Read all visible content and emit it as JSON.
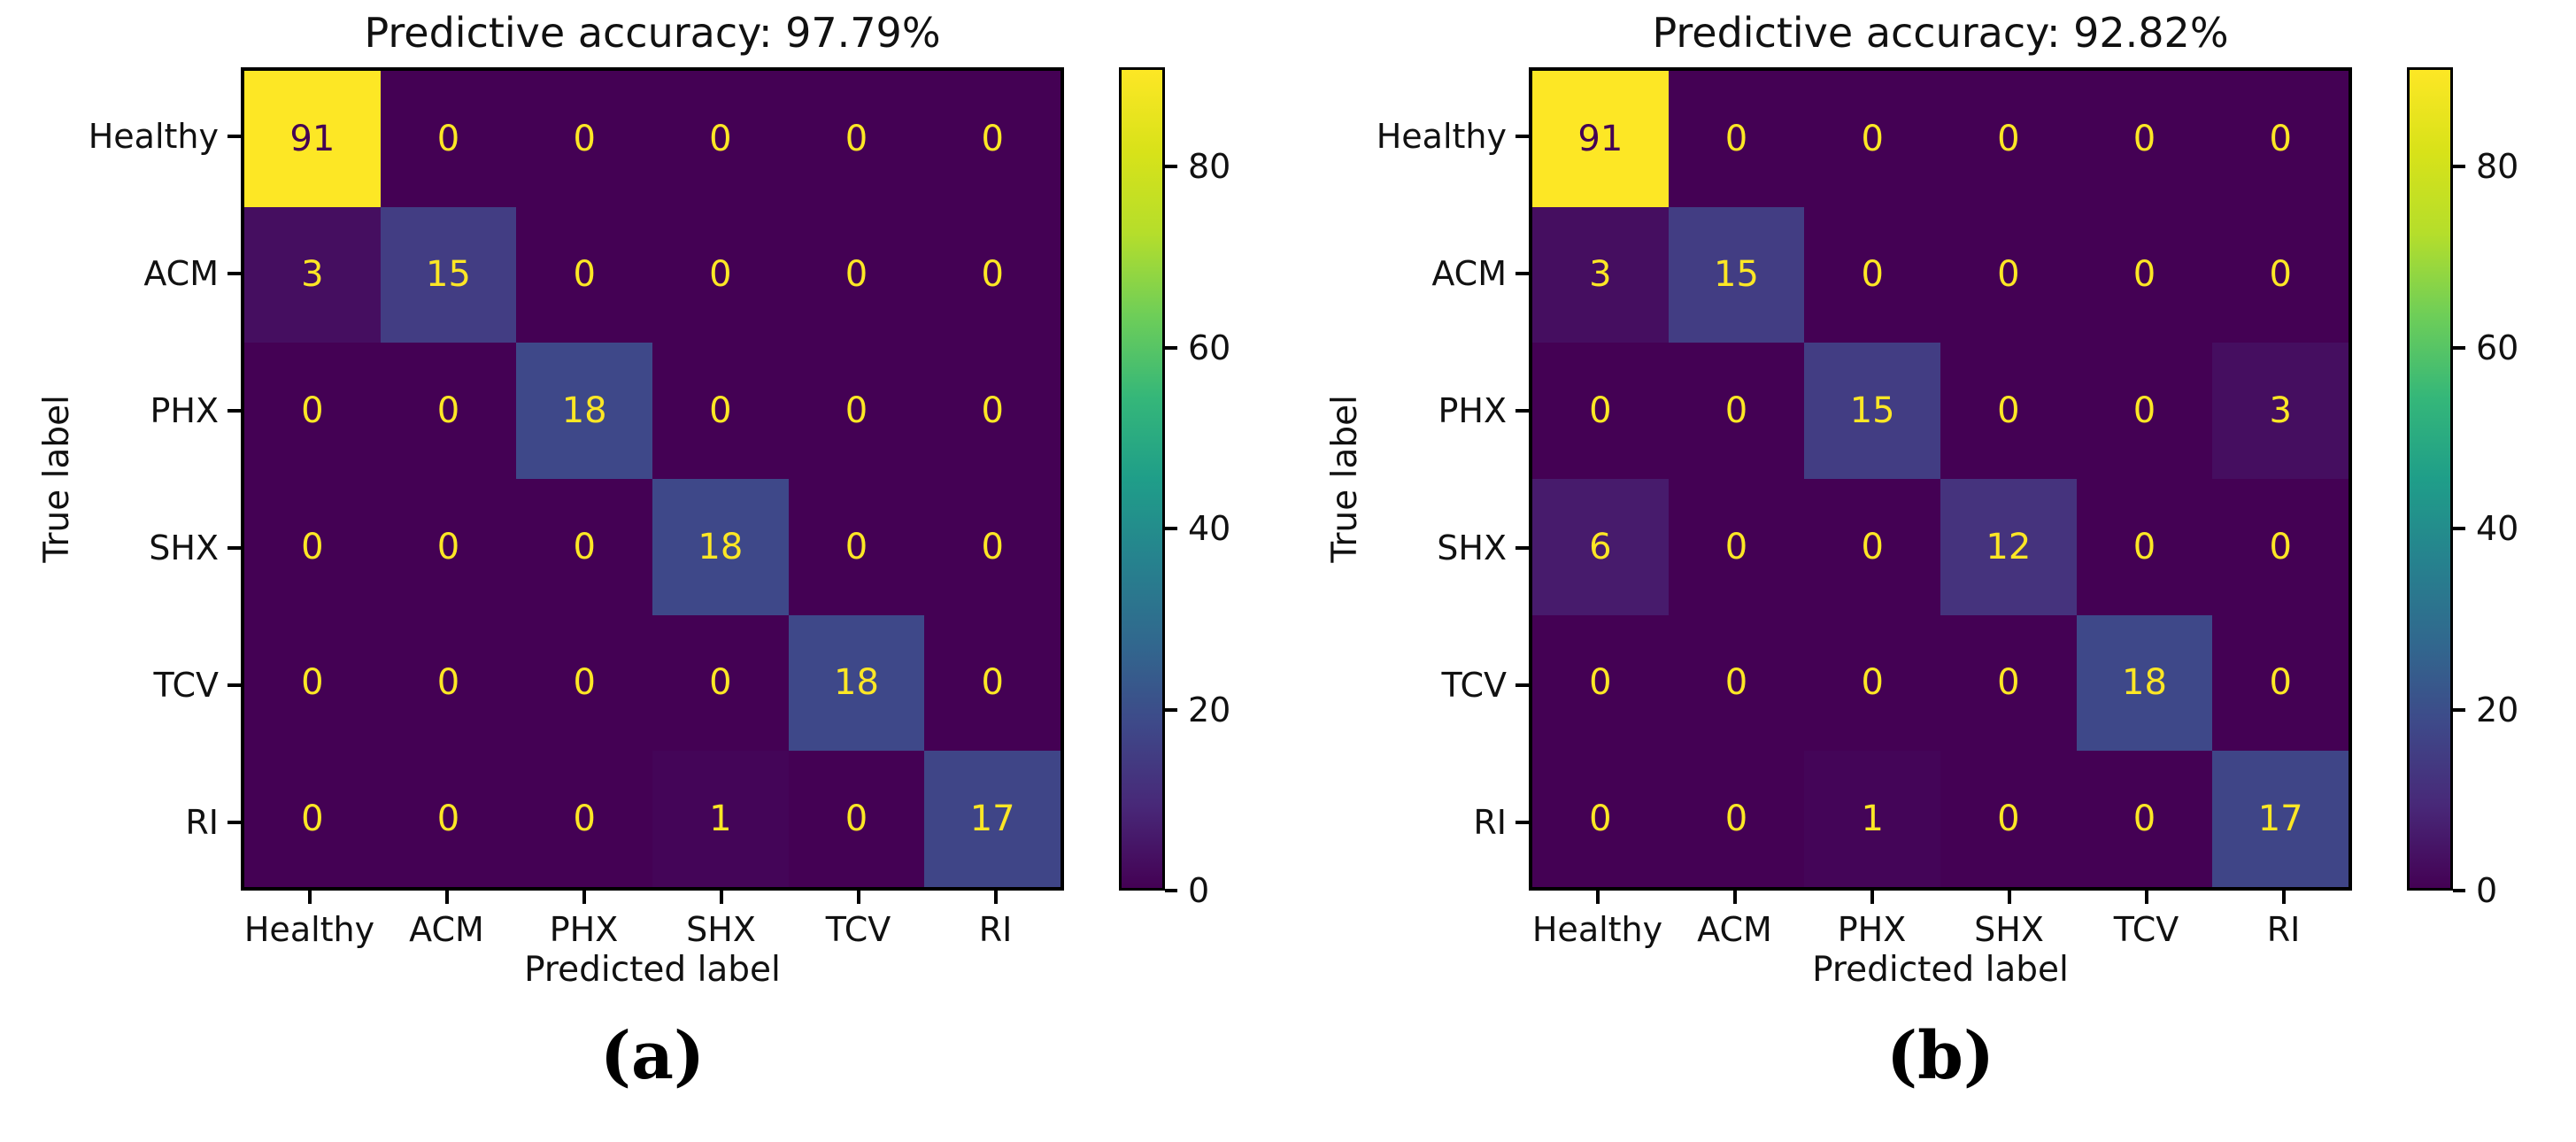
{
  "chart_data": [
    {
      "type": "heatmap",
      "title": "Predictive accuracy: 97.79%",
      "xlabel": "Predicted label",
      "ylabel": "True label",
      "caption": "(a)",
      "x_categories": [
        "Healthy",
        "ACM",
        "PHX",
        "SHX",
        "TCV",
        "RI"
      ],
      "y_categories": [
        "Healthy",
        "ACM",
        "PHX",
        "SHX",
        "TCV",
        "RI"
      ],
      "values": [
        [
          91,
          0,
          0,
          0,
          0,
          0
        ],
        [
          3,
          15,
          0,
          0,
          0,
          0
        ],
        [
          0,
          0,
          18,
          0,
          0,
          0
        ],
        [
          0,
          0,
          0,
          18,
          0,
          0
        ],
        [
          0,
          0,
          0,
          0,
          18,
          0
        ],
        [
          0,
          0,
          0,
          1,
          0,
          17
        ]
      ],
      "vmin": 0,
      "vmax": 91,
      "colormap": "viridis",
      "colorbar_ticks": [
        0,
        20,
        40,
        60,
        80
      ],
      "legend_position": "right-colorbar",
      "grid": false
    },
    {
      "type": "heatmap",
      "title": "Predictive accuracy: 92.82%",
      "xlabel": "Predicted label",
      "ylabel": "True label",
      "caption": "(b)",
      "x_categories": [
        "Healthy",
        "ACM",
        "PHX",
        "SHX",
        "TCV",
        "RI"
      ],
      "y_categories": [
        "Healthy",
        "ACM",
        "PHX",
        "SHX",
        "TCV",
        "RI"
      ],
      "values": [
        [
          91,
          0,
          0,
          0,
          0,
          0
        ],
        [
          3,
          15,
          0,
          0,
          0,
          0
        ],
        [
          0,
          0,
          15,
          0,
          0,
          3
        ],
        [
          6,
          0,
          0,
          12,
          0,
          0
        ],
        [
          0,
          0,
          0,
          0,
          18,
          0
        ],
        [
          0,
          0,
          1,
          0,
          0,
          17
        ]
      ],
      "vmin": 0,
      "vmax": 91,
      "colormap": "viridis",
      "colorbar_ticks": [
        0,
        20,
        40,
        60,
        80
      ],
      "legend_position": "right-colorbar",
      "grid": false
    }
  ],
  "style": {
    "background": "#ffffff",
    "axis_color": "#000000",
    "cmap_min_color": "#440154",
    "cmap_max_color": "#fde725",
    "value_colors": {
      "0": "#440154",
      "1": "#440558",
      "3": "#450e60",
      "6": "#471b6c",
      "12": "#45337d",
      "15": "#423d83",
      "17": "#3f4587",
      "18": "#3e4889",
      "91": "#fde725"
    }
  }
}
